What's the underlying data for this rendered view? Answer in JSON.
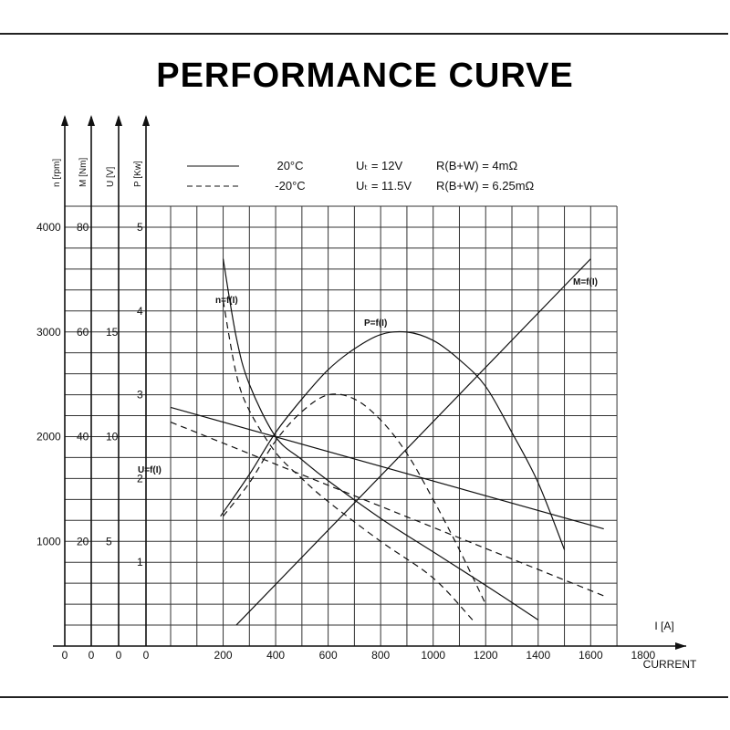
{
  "page": {
    "title": "PERFORMANCE CURVE"
  },
  "legend": [
    {
      "style": "solid",
      "temp": "20°C",
      "voltage": "Uₜ = 12V",
      "resistance": "R(B+W) = 4mΩ"
    },
    {
      "style": "dashed",
      "temp": "-20°C",
      "voltage": "Uₜ = 11.5V",
      "resistance": "R(B+W) = 6.25mΩ"
    }
  ],
  "chart_data": {
    "type": "line",
    "title": "PERFORMANCE CURVE",
    "xlabel": "I [A]",
    "xlabel_secondary": "CURRENT",
    "xlim": [
      0,
      1800
    ],
    "x_ticks": [
      "0",
      "0",
      "0",
      "0",
      "200",
      "400",
      "600",
      "800",
      "1000",
      "1200",
      "1400",
      "1600",
      "1800"
    ],
    "axes": [
      {
        "label": "n [rpm]",
        "range": [
          0,
          4000
        ],
        "ticks": [
          "4000",
          "3000",
          "2000",
          "1000"
        ],
        "tick_values": [
          4000,
          3000,
          2000,
          1000
        ]
      },
      {
        "label": "M [Nm]",
        "range": [
          0,
          80
        ],
        "ticks": [
          "80",
          "60",
          "40",
          "20"
        ],
        "tick_values": [
          80,
          60,
          40,
          20
        ]
      },
      {
        "label": "U [V]",
        "range": [
          0,
          20
        ],
        "ticks": [
          "15",
          "10",
          "5"
        ],
        "tick_values": [
          15,
          10,
          5
        ]
      },
      {
        "label": "P [Kw]",
        "range": [
          0,
          5
        ],
        "ticks": [
          "5",
          "4",
          "3",
          "2",
          "1"
        ],
        "tick_values": [
          5,
          4,
          3,
          2,
          1
        ]
      }
    ],
    "grid": true,
    "legend_position": "top",
    "series": [
      {
        "name": "n=f(I)",
        "axis": "n [rpm]",
        "style": "solid",
        "x": [
          200,
          250,
          300,
          400,
          500,
          600,
          800,
          1000,
          1200,
          1400
        ],
        "y": [
          3700,
          2950,
          2500,
          2000,
          1780,
          1580,
          1220,
          900,
          580,
          250
        ]
      },
      {
        "name": "n=f(I)",
        "axis": "n [rpm]",
        "style": "dashed",
        "x": [
          200,
          250,
          300,
          400,
          500,
          600,
          800,
          1000,
          1150
        ],
        "y": [
          3300,
          2600,
          2250,
          1850,
          1600,
          1380,
          1000,
          650,
          250
        ]
      },
      {
        "name": "M=f(I)",
        "axis": "n [rpm]",
        "style": "solid",
        "x": [
          250,
          1600
        ],
        "y": [
          200,
          3700
        ]
      },
      {
        "name": "P=f(I)",
        "axis": "P [Kw]",
        "style": "solid",
        "x": [
          190,
          300,
          400,
          500,
          600,
          700,
          800,
          900,
          1000,
          1100,
          1200,
          1300,
          1400,
          1500
        ],
        "y": [
          1.55,
          2.05,
          2.55,
          2.95,
          3.3,
          3.55,
          3.72,
          3.75,
          3.65,
          3.42,
          3.1,
          2.55,
          1.95,
          1.15
        ]
      },
      {
        "name": "P=f(I)",
        "axis": "P [Kw]",
        "style": "dashed",
        "x": [
          200,
          300,
          400,
          500,
          600,
          700,
          800,
          900,
          1000,
          1100,
          1200
        ],
        "y": [
          1.55,
          1.95,
          2.45,
          2.8,
          3.0,
          2.95,
          2.7,
          2.3,
          1.75,
          1.15,
          0.5
        ]
      },
      {
        "name": "U=f(I)",
        "axis": "U [V]",
        "style": "solid",
        "x": [
          0,
          1650
        ],
        "y": [
          11.4,
          5.6
        ]
      },
      {
        "name": "U=f(I)",
        "axis": "U [V]",
        "style": "dashed",
        "x": [
          0,
          1650
        ],
        "y": [
          10.7,
          2.4
        ]
      }
    ],
    "annotations": [
      "n=f(I)",
      "P=f(I)",
      "M=f(I)",
      "U=f(I)"
    ]
  }
}
